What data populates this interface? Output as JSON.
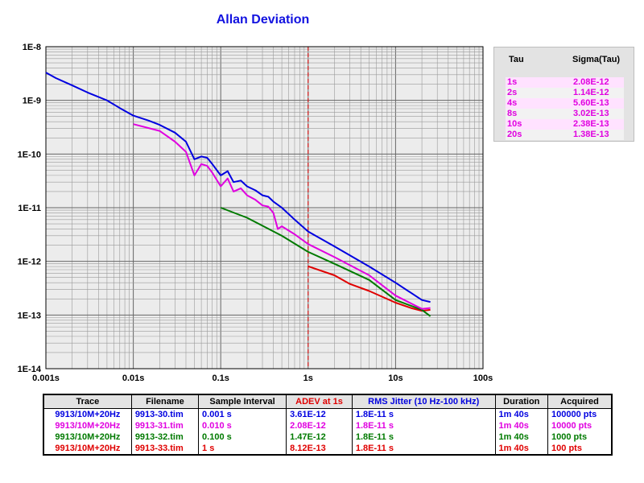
{
  "chart_data": {
    "type": "line",
    "title": "Allan Deviation",
    "xscale": "log",
    "yscale": "log",
    "xlim": [
      0.001,
      100
    ],
    "ylim": [
      1e-14,
      1e-08
    ],
    "x_tick_labels": [
      "0.001s",
      "0.01s",
      "0.1s",
      "1s",
      "10s",
      "100s"
    ],
    "y_tick_labels": [
      "1E-8",
      "1E-9",
      "1E-10",
      "1E-11",
      "1E-12",
      "1E-13",
      "1E-14"
    ],
    "grid": true,
    "marker_line_x": 1,
    "series": [
      {
        "name": "9913-30.tim",
        "color": "#0000e0",
        "points": [
          [
            0.001,
            3.3e-09
          ],
          [
            0.0013,
            2.6e-09
          ],
          [
            0.002,
            1.9e-09
          ],
          [
            0.003,
            1.4e-09
          ],
          [
            0.005,
            1e-09
          ],
          [
            0.007,
            7.2e-10
          ],
          [
            0.01,
            5.2e-10
          ],
          [
            0.015,
            4.2e-10
          ],
          [
            0.02,
            3.5e-10
          ],
          [
            0.03,
            2.5e-10
          ],
          [
            0.04,
            1.7e-10
          ],
          [
            0.05,
            8e-11
          ],
          [
            0.06,
            9e-11
          ],
          [
            0.07,
            8.5e-11
          ],
          [
            0.08,
            6.5e-11
          ],
          [
            0.1,
            4e-11
          ],
          [
            0.12,
            4.8e-11
          ],
          [
            0.14,
            3e-11
          ],
          [
            0.17,
            3.2e-11
          ],
          [
            0.2,
            2.5e-11
          ],
          [
            0.25,
            2.1e-11
          ],
          [
            0.3,
            1.7e-11
          ],
          [
            0.35,
            1.6e-11
          ],
          [
            0.4,
            1.3e-11
          ],
          [
            0.5,
            1e-11
          ],
          [
            0.7,
            6e-12
          ],
          [
            1,
            3.6e-12
          ],
          [
            2,
            1.9e-12
          ],
          [
            5,
            8e-13
          ],
          [
            10,
            4e-13
          ],
          [
            20,
            1.9e-13
          ],
          [
            25,
            1.75e-13
          ]
        ]
      },
      {
        "name": "9913-31.tim",
        "color": "#e000e0",
        "points": [
          [
            0.01,
            3.6e-10
          ],
          [
            0.02,
            2.7e-10
          ],
          [
            0.03,
            1.7e-10
          ],
          [
            0.04,
            1.1e-10
          ],
          [
            0.05,
            4e-11
          ],
          [
            0.06,
            6.5e-11
          ],
          [
            0.07,
            6e-11
          ],
          [
            0.08,
            4.5e-11
          ],
          [
            0.1,
            2.5e-11
          ],
          [
            0.12,
            3.5e-11
          ],
          [
            0.14,
            2e-11
          ],
          [
            0.17,
            2.3e-11
          ],
          [
            0.2,
            1.7e-11
          ],
          [
            0.25,
            1.4e-11
          ],
          [
            0.3,
            1.1e-11
          ],
          [
            0.35,
            1.05e-11
          ],
          [
            0.4,
            8e-12
          ],
          [
            0.45,
            4e-12
          ],
          [
            0.5,
            4.5e-12
          ],
          [
            0.7,
            3.2e-12
          ],
          [
            1,
            2.1e-12
          ],
          [
            2,
            1.2e-12
          ],
          [
            5,
            5.5e-13
          ],
          [
            10,
            2.3e-13
          ],
          [
            20,
            1.3e-13
          ],
          [
            25,
            1.35e-13
          ]
        ]
      },
      {
        "name": "9913-32.tim",
        "color": "#007a00",
        "points": [
          [
            0.1,
            1e-11
          ],
          [
            0.2,
            6.5e-12
          ],
          [
            0.5,
            3e-12
          ],
          [
            1,
            1.5e-12
          ],
          [
            2,
            9e-13
          ],
          [
            5,
            4.5e-13
          ],
          [
            10,
            1.9e-13
          ],
          [
            20,
            1.25e-13
          ],
          [
            25,
            9.5e-14
          ]
        ]
      },
      {
        "name": "9913-33.tim",
        "color": "#e00000",
        "points": [
          [
            1,
            8.1e-13
          ],
          [
            2,
            5.5e-13
          ],
          [
            3,
            3.8e-13
          ],
          [
            5,
            2.8e-13
          ],
          [
            10,
            1.7e-13
          ],
          [
            15,
            1.35e-13
          ],
          [
            20,
            1.2e-13
          ],
          [
            25,
            1.25e-13
          ]
        ]
      }
    ]
  },
  "tau_panel": {
    "header_tau": "Tau",
    "header_sigma": "Sigma(Tau)",
    "rows": [
      {
        "tau": "1s",
        "sigma": "2.08E-12"
      },
      {
        "tau": "2s",
        "sigma": "1.14E-12"
      },
      {
        "tau": "4s",
        "sigma": "5.60E-13"
      },
      {
        "tau": "8s",
        "sigma": "3.02E-13"
      },
      {
        "tau": "10s",
        "sigma": "2.38E-13"
      },
      {
        "tau": "20s",
        "sigma": "1.38E-13"
      }
    ]
  },
  "legend_table": {
    "headers": [
      "Trace",
      "Filename",
      "Sample Interval",
      "ADEV at 1s",
      "RMS Jitter (10 Hz-100 kHz)",
      "Duration",
      "Acquired"
    ],
    "header_colors": [
      "#000000",
      "#000000",
      "#000000",
      "#e00000",
      "#0000e0",
      "#000000",
      "#000000"
    ],
    "rows": [
      {
        "color": "#0000e0",
        "cells": [
          "9913/10M+20Hz",
          "9913-30.tim",
          "0.001 s",
          "3.61E-12",
          "1.8E-11 s",
          "1m 40s",
          "100000 pts"
        ]
      },
      {
        "color": "#e000e0",
        "cells": [
          "9913/10M+20Hz",
          "9913-31.tim",
          "0.010 s",
          "2.08E-12",
          "1.8E-11 s",
          "1m 40s",
          "10000 pts"
        ]
      },
      {
        "color": "#007a00",
        "cells": [
          "9913/10M+20Hz",
          "9913-32.tim",
          "0.100 s",
          "1.47E-12",
          "1.8E-11 s",
          "1m 40s",
          "1000 pts"
        ]
      },
      {
        "color": "#e00000",
        "cells": [
          "9913/10M+20Hz",
          "9913-33.tim",
          "1 s",
          "8.12E-13",
          "1.8E-11 s",
          "1m 40s",
          "100 pts"
        ]
      }
    ]
  }
}
